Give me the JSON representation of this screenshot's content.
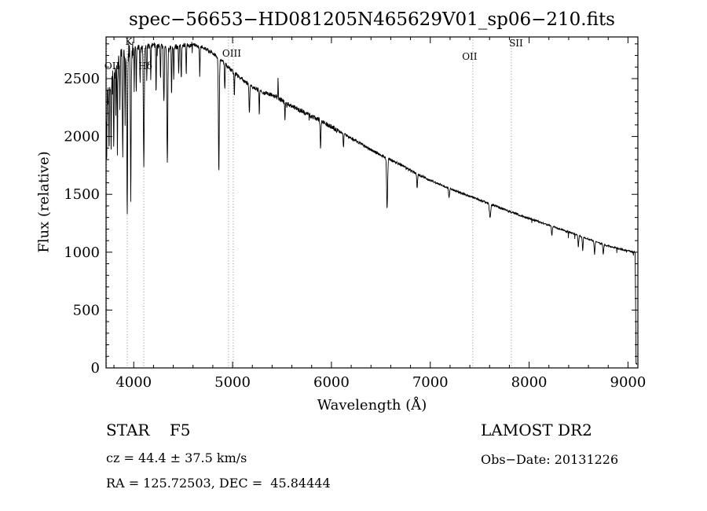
{
  "title": "spec−56653−HD081205N465629V01_sp06−210.fits",
  "axes": {
    "xlabel": "Wavelength (Å)",
    "ylabel": "Flux (relative)"
  },
  "annotations": {
    "class_label": "STAR    F5",
    "survey": "LAMOST DR2",
    "cz": "cz = 44.4 ± 37.5 km/s",
    "obs_date": "Obs−Date: 20131226",
    "coords": "RA = 125.72503, DEC =  45.84444"
  },
  "chart_data": {
    "type": "line",
    "title": "spec−56653−HD081205N465629V01_sp06−210.fits",
    "xlabel": "Wavelength (Å)",
    "ylabel": "Flux (relative)",
    "xlim": [
      3720,
      9100
    ],
    "ylim": [
      0,
      2860
    ],
    "xticks": [
      4000,
      5000,
      6000,
      7000,
      8000,
      9000
    ],
    "yticks": [
      0,
      500,
      1000,
      1500,
      2000,
      2500
    ],
    "x_minor_step": 200,
    "y_minor_step": 100,
    "grid": false,
    "legend": "none",
    "colors": {
      "curve": "#000000",
      "frame": "#000000",
      "marker_line": "#8a8a8a",
      "marker_text": "#222222"
    },
    "line_markers": [
      {
        "label": "OII",
        "wavelength": 3727,
        "label_y": 88,
        "anchor": "start",
        "label_dx": -3
      },
      {
        "label": "K",
        "wavelength": 3934,
        "label_y": 57,
        "anchor": "middle",
        "label_dx": 2
      },
      {
        "label": "Hδ",
        "wavelength": 4102,
        "label_y": 88,
        "anchor": "middle",
        "label_dx": 2
      },
      {
        "label": "OIII",
        "wavelength": 4959,
        "label_y": 72,
        "anchor": "middle",
        "label_dx": 4
      },
      {
        "label": "",
        "wavelength": 5007,
        "label_y": 72,
        "anchor": "middle",
        "label_dx": 0
      },
      {
        "label": "OII",
        "wavelength": 7430,
        "label_y": 76,
        "anchor": "middle",
        "label_dx": -4
      },
      {
        "label": "SII",
        "wavelength": 7820,
        "label_y": 59,
        "anchor": "middle",
        "label_dx": 6
      }
    ],
    "continuum": [
      [
        3720,
        2280
      ],
      [
        3740,
        2350
      ],
      [
        3760,
        2430
      ],
      [
        3780,
        2500
      ],
      [
        3800,
        2550
      ],
      [
        3830,
        2620
      ],
      [
        3860,
        2670
      ],
      [
        3890,
        2700
      ],
      [
        3920,
        2730
      ],
      [
        3950,
        2750
      ],
      [
        4000,
        2765
      ],
      [
        4100,
        2770
      ],
      [
        4200,
        2790
      ],
      [
        4300,
        2775
      ],
      [
        4400,
        2770
      ],
      [
        4500,
        2785
      ],
      [
        4600,
        2795
      ],
      [
        4700,
        2770
      ],
      [
        4800,
        2720
      ],
      [
        4900,
        2650
      ],
      [
        5000,
        2560
      ],
      [
        5100,
        2490
      ],
      [
        5200,
        2430
      ],
      [
        5300,
        2380
      ],
      [
        5400,
        2360
      ],
      [
        5500,
        2310
      ],
      [
        5600,
        2260
      ],
      [
        5700,
        2220
      ],
      [
        5800,
        2175
      ],
      [
        5900,
        2130
      ],
      [
        6000,
        2085
      ],
      [
        6100,
        2035
      ],
      [
        6200,
        1985
      ],
      [
        6300,
        1935
      ],
      [
        6400,
        1885
      ],
      [
        6500,
        1840
      ],
      [
        6563,
        1810
      ],
      [
        6700,
        1755
      ],
      [
        6800,
        1705
      ],
      [
        6900,
        1663
      ],
      [
        7000,
        1622
      ],
      [
        7100,
        1585
      ],
      [
        7200,
        1550
      ],
      [
        7300,
        1516
      ],
      [
        7400,
        1482
      ],
      [
        7500,
        1450
      ],
      [
        7600,
        1418
      ],
      [
        7700,
        1385
      ],
      [
        7800,
        1352
      ],
      [
        7900,
        1322
      ],
      [
        8000,
        1292
      ],
      [
        8100,
        1262
      ],
      [
        8200,
        1232
      ],
      [
        8300,
        1203
      ],
      [
        8400,
        1175
      ],
      [
        8500,
        1145
      ],
      [
        8600,
        1113
      ],
      [
        8700,
        1082
      ],
      [
        8800,
        1055
      ],
      [
        8900,
        1032
      ],
      [
        9000,
        1012
      ],
      [
        9050,
        1003
      ],
      [
        9072,
        1000
      ],
      [
        9078,
        500
      ],
      [
        9082,
        40
      ],
      [
        9090,
        30
      ]
    ],
    "absorption_lines": [
      [
        3726,
        450,
        2.5
      ],
      [
        3750,
        550,
        2.5
      ],
      [
        3771,
        600,
        2.5
      ],
      [
        3798,
        680,
        3
      ],
      [
        3820,
        420,
        2.5
      ],
      [
        3835,
        780,
        3
      ],
      [
        3860,
        380,
        2.5
      ],
      [
        3889,
        900,
        3.5
      ],
      [
        3912,
        420,
        2.5
      ],
      [
        3934,
        1450,
        4
      ],
      [
        3970,
        1250,
        4
      ],
      [
        4005,
        380,
        2.5
      ],
      [
        4026,
        420,
        2.5
      ],
      [
        4064,
        300,
        2.5
      ],
      [
        4102,
        1020,
        4.5
      ],
      [
        4132,
        300,
        2.5
      ],
      [
        4172,
        320,
        2.5
      ],
      [
        4226,
        420,
        3
      ],
      [
        4271,
        300,
        2.5
      ],
      [
        4305,
        480,
        4
      ],
      [
        4340,
        1020,
        4.5
      ],
      [
        4383,
        420,
        3
      ],
      [
        4405,
        300,
        2.5
      ],
      [
        4455,
        260,
        3
      ],
      [
        4481,
        280,
        3
      ],
      [
        4531,
        260,
        3
      ],
      [
        4668,
        260,
        3
      ],
      [
        4861,
        990,
        4.5
      ],
      [
        4921,
        220,
        3
      ],
      [
        5018,
        200,
        3
      ],
      [
        5170,
        260,
        4
      ],
      [
        5270,
        200,
        3
      ],
      [
        5530,
        150,
        3
      ],
      [
        5890,
        230,
        4
      ],
      [
        6122,
        120,
        3
      ],
      [
        6563,
        440,
        5
      ],
      [
        6867,
        130,
        4
      ],
      [
        7190,
        90,
        4
      ],
      [
        7605,
        120,
        6
      ],
      [
        8230,
        80,
        4
      ],
      [
        8498,
        100,
        4
      ],
      [
        8542,
        120,
        4
      ],
      [
        8662,
        110,
        4
      ],
      [
        8750,
        90,
        4
      ]
    ],
    "emission_spikes": [
      [
        5460,
        160,
        2.5
      ]
    ],
    "noise_bands": [
      [
        3720,
        4010,
        75,
        0.05,
        350
      ],
      [
        4010,
        4600,
        24,
        0.02,
        120
      ],
      [
        4600,
        5300,
        17,
        0.01,
        60
      ],
      [
        5300,
        6100,
        20,
        0.01,
        50
      ],
      [
        6100,
        7000,
        12,
        0,
        0
      ],
      [
        7000,
        8100,
        9,
        0.01,
        40
      ],
      [
        8100,
        9100,
        7,
        0.02,
        60
      ]
    ],
    "sample_step_angstrom": 2.5
  }
}
